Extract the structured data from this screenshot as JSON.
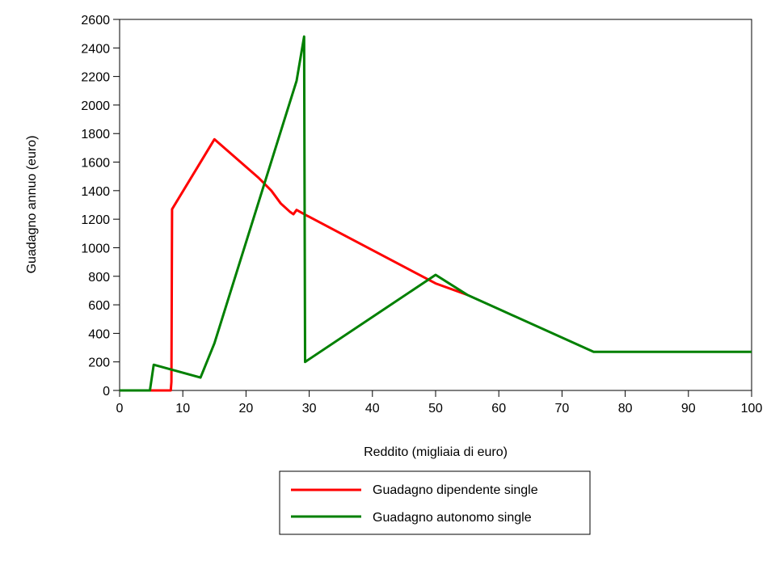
{
  "chart_data": {
    "type": "line",
    "xlabel": "Reddito (migliaia di euro)",
    "ylabel": "Guadagno annuo (euro)",
    "xlim": [
      0,
      100
    ],
    "ylim": [
      0,
      2600
    ],
    "x_ticks": [
      "0",
      "10",
      "20",
      "30",
      "40",
      "50",
      "60",
      "70",
      "80",
      "90",
      "100"
    ],
    "y_ticks": [
      "0",
      "200",
      "400",
      "600",
      "800",
      "1000",
      "1200",
      "1400",
      "1600",
      "1800",
      "2000",
      "2200",
      "2400",
      "2600"
    ],
    "grid": false,
    "legend_position": "bottom-center",
    "series": [
      {
        "name": "Guadagno dipendente single",
        "color": "#ff0000",
        "points": [
          [
            0,
            0
          ],
          [
            8.1,
            0
          ],
          [
            8.2,
            60
          ],
          [
            8.3,
            1270
          ],
          [
            15,
            1760
          ],
          [
            22,
            1490
          ],
          [
            24,
            1400
          ],
          [
            25.5,
            1310
          ],
          [
            27,
            1250
          ],
          [
            27.5,
            1235
          ],
          [
            28,
            1265
          ],
          [
            29,
            1240
          ],
          [
            35,
            1100
          ],
          [
            50,
            750
          ],
          [
            55,
            670
          ]
        ]
      },
      {
        "name": "Guadagno autonomo single",
        "color": "#008000",
        "points": [
          [
            0,
            0
          ],
          [
            4.8,
            0
          ],
          [
            5.4,
            180
          ],
          [
            12.8,
            90
          ],
          [
            15,
            330
          ],
          [
            28,
            2170
          ],
          [
            29.2,
            2480
          ],
          [
            29.35,
            200
          ],
          [
            50,
            810
          ],
          [
            55,
            670
          ],
          [
            75,
            270
          ],
          [
            100,
            270
          ]
        ]
      }
    ]
  }
}
